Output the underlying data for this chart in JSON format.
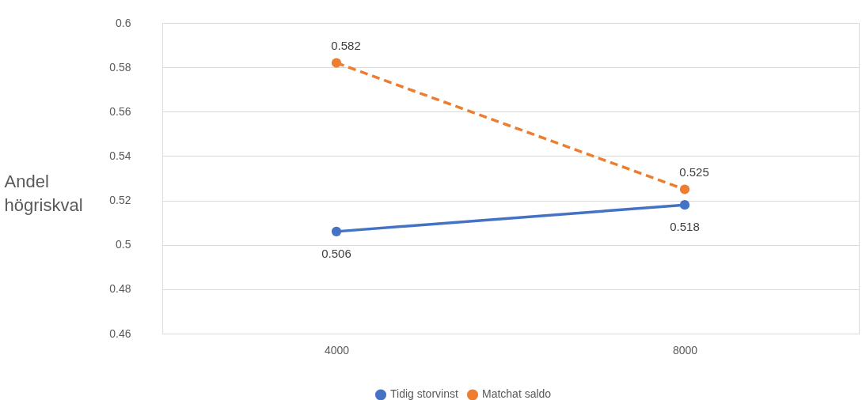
{
  "chart_data": {
    "type": "line",
    "ylabel": "Andel högriskval",
    "categories": [
      "4000",
      "8000"
    ],
    "series": [
      {
        "name": "Tidig storvinst",
        "color": "#4472c4",
        "line_style": "solid",
        "values": [
          0.506,
          0.518
        ]
      },
      {
        "name": "Matchat saldo",
        "color": "#ed7d31",
        "line_style": "dashed",
        "values": [
          0.582,
          0.525
        ]
      }
    ],
    "ylim": [
      0.46,
      0.6
    ],
    "yticks": [
      0.46,
      0.48,
      0.5,
      0.52,
      0.54,
      0.56,
      0.58,
      0.6
    ],
    "grid": "y",
    "legend": "bottom",
    "marker": "circle",
    "data_labels": true
  }
}
